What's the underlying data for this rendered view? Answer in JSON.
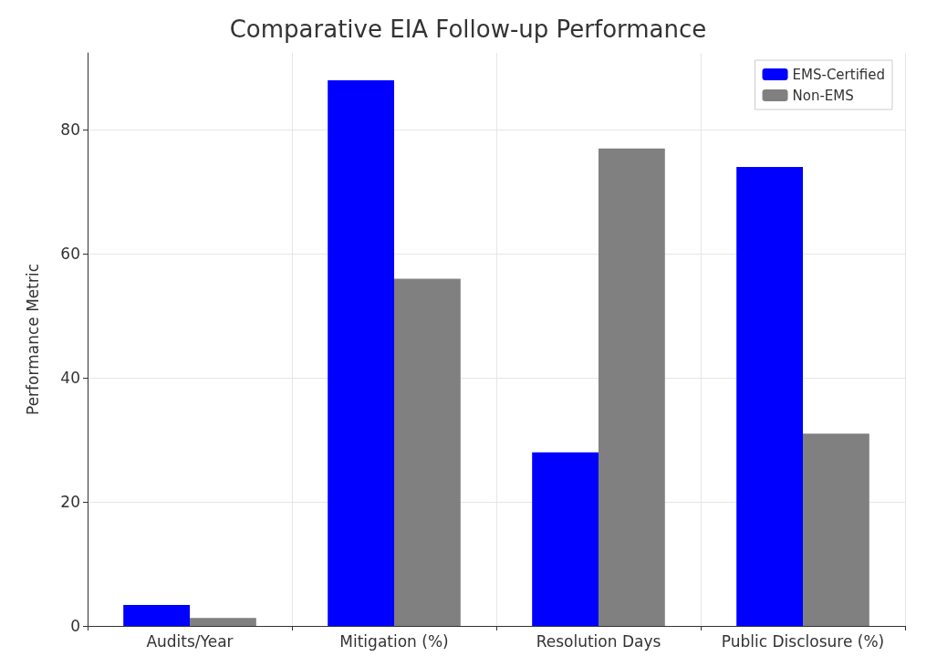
{
  "chart_data": {
    "type": "bar",
    "title": "Comparative EIA Follow-up Performance",
    "ylabel": "Performance Metric",
    "categories": [
      "Audits/Year",
      "Mitigation (%)",
      "Resolution Days",
      "Public Disclosure (%)"
    ],
    "series": [
      {
        "name": "EMS-Certified",
        "color": "#0000ff",
        "values": [
          3.4,
          88,
          28,
          74
        ]
      },
      {
        "name": "Non-EMS",
        "color": "#808080",
        "values": [
          1.3,
          56,
          77,
          31
        ]
      }
    ],
    "ylim": [
      0,
      92.4
    ],
    "yticks": [
      0,
      20,
      40,
      60,
      80
    ],
    "grid": true,
    "legend": "top right"
  }
}
